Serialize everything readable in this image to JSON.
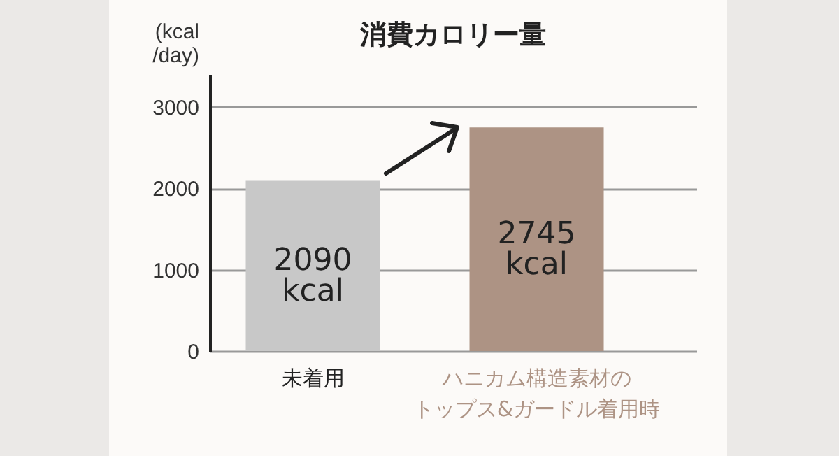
{
  "chart_data": {
    "type": "bar",
    "title": "消費カロリー量",
    "ylabel": "(kcal/day)",
    "categories": [
      "未着用",
      "ハニカム構造素材のトップス&ガードル着用時"
    ],
    "values": [
      2090,
      2745
    ],
    "colors": [
      "#c8c8c8",
      "#ad9384"
    ],
    "value_labels": [
      "2090\nkcal",
      "2745\nkcal"
    ],
    "ylim": [
      0,
      3400
    ],
    "yticks": [
      0,
      1000,
      2000,
      3000
    ],
    "grid": "y",
    "legend": false
  }
}
